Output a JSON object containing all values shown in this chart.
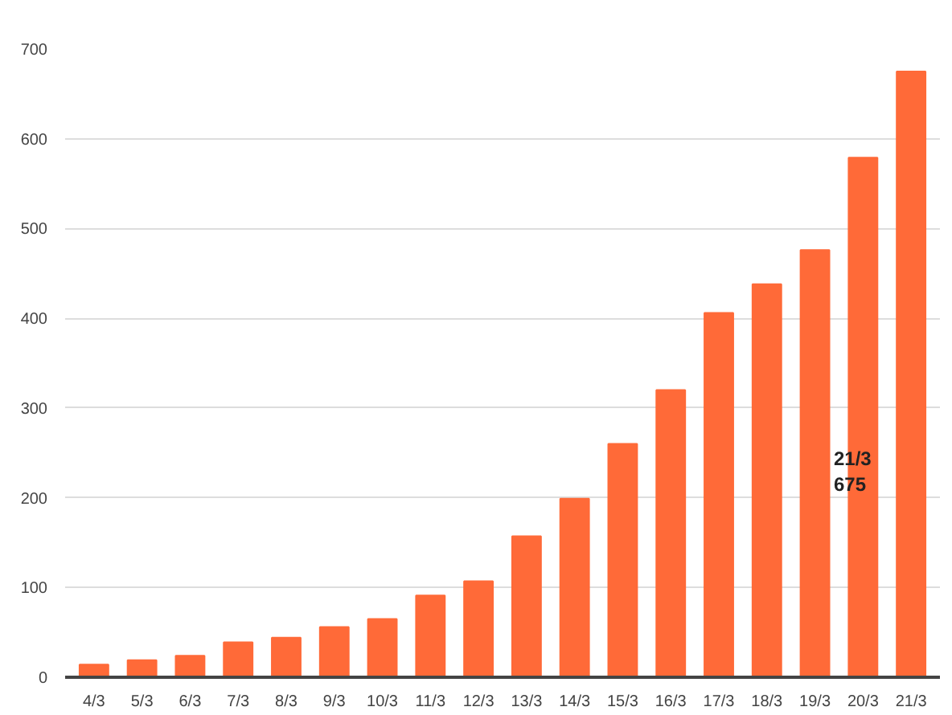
{
  "chart_data": {
    "type": "bar",
    "categories": [
      "4/3",
      "5/3",
      "6/3",
      "7/3",
      "8/3",
      "9/3",
      "10/3",
      "11/3",
      "12/3",
      "13/3",
      "14/3",
      "15/3",
      "16/3",
      "17/3",
      "18/3",
      "19/3",
      "20/3",
      "21/3"
    ],
    "values": [
      14,
      19,
      24,
      39,
      44,
      56,
      65,
      91,
      107,
      157,
      199,
      260,
      320,
      406,
      438,
      476,
      579,
      675
    ],
    "color": "#ff6a38",
    "ylim": [
      0,
      700
    ],
    "yticks": [
      0,
      100,
      200,
      300,
      400,
      500,
      600,
      700
    ],
    "grid": "y",
    "annotations": [
      "21/3\n675"
    ]
  }
}
